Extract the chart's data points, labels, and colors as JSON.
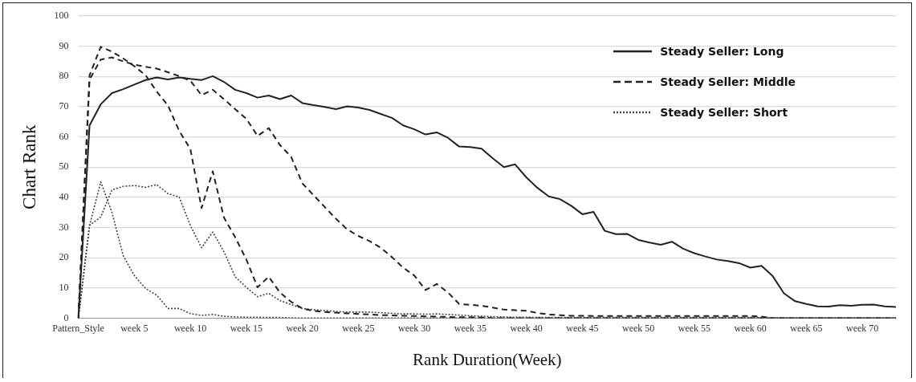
{
  "chart_data": {
    "type": "line",
    "xlabel": "Rank Duration(Week)",
    "ylabel": "Chart Rank",
    "categories": [
      "Pattern_Style",
      null,
      null,
      null,
      null,
      "week 5",
      null,
      null,
      null,
      null,
      "week 10",
      null,
      null,
      null,
      null,
      "week 15",
      null,
      null,
      null,
      null,
      "week 20",
      null,
      null,
      null,
      null,
      "week 25",
      null,
      null,
      null,
      null,
      "week 30",
      null,
      null,
      null,
      null,
      "week 35",
      null,
      null,
      null,
      null,
      "week 40",
      null,
      null,
      null,
      null,
      "week 45",
      null,
      null,
      null,
      null,
      "week 50",
      null,
      null,
      null,
      null,
      "week 55",
      null,
      null,
      null,
      null,
      "week 60",
      null,
      null,
      null,
      null,
      "week 65",
      null,
      null,
      null,
      null,
      "week 70",
      null,
      null,
      null
    ],
    "ylim": [
      0,
      100
    ],
    "yticks": [
      0,
      10,
      20,
      30,
      40,
      50,
      60,
      70,
      80,
      90,
      100
    ],
    "grid": "y",
    "legend": "top right",
    "marker": "none",
    "series": [
      {
        "name": "Steady Seller: Long",
        "color": "#222222",
        "line_style": "solid",
        "values": [
          0,
          63.8,
          70.8,
          74.5,
          75.8,
          77.3,
          78.8,
          79.7,
          79,
          79.7,
          79.2,
          78.8,
          80.1,
          78.2,
          75.6,
          74.5,
          73,
          73.7,
          72.5,
          73.7,
          71.2,
          70.5,
          69.9,
          69.2,
          70.1,
          69.7,
          68.9,
          67.6,
          66.3,
          63.8,
          62.5,
          60.8,
          61.5,
          59.7,
          56.8,
          56.6,
          56.1,
          52.9,
          50,
          50.9,
          46.6,
          43.1,
          40.3,
          39.4,
          37.2,
          34.4,
          35.2,
          28.9,
          27.8,
          27.9,
          25.9,
          25,
          24.3,
          25.3,
          23,
          21.5,
          20.4,
          19.4,
          18.9,
          18.2,
          16.7,
          17.3,
          13.9,
          8.2,
          5.6,
          4.7,
          3.9,
          3.8,
          4.3,
          4.1,
          4.4,
          4.5,
          3.9,
          3.7
        ]
      },
      {
        "name": "Steady Seller: Middle",
        "color": "#222222",
        "line_style": "dashed",
        "values": [
          0,
          79,
          85.6,
          86.3,
          85,
          83.9,
          83.2,
          82.6,
          81.4,
          80.1,
          78.6,
          73.8,
          75.6,
          72.5,
          69.2,
          66,
          60.3,
          62.9,
          57.3,
          53.4,
          44.6,
          40.7,
          36.8,
          32.9,
          29.4,
          27.2,
          25.5,
          23.3,
          20.2,
          16.7,
          14.1,
          9.3,
          11.3,
          8.5,
          4.7,
          4.4,
          4.1,
          3.5,
          2.8,
          2.6,
          2.4,
          1.7,
          1.2,
          1,
          0.8,
          0.8,
          0.7,
          0.7,
          0.7,
          0.7,
          0.7,
          0.7,
          0.7,
          0.7,
          0.7,
          0.7,
          0.7,
          0.7,
          0.7,
          0.7,
          0.7,
          0.5,
          0,
          0,
          0,
          0,
          0,
          0,
          0,
          0,
          0,
          0,
          0,
          0
        ]
      },
      {
        "color": "#222222",
        "line_style": "dashed",
        "values": [
          0,
          80.4,
          89.8,
          88.2,
          86,
          83.4,
          80.4,
          75,
          70.4,
          62,
          56,
          36.4,
          48.6,
          33.3,
          26.8,
          19.4,
          10.2,
          13.7,
          8.5,
          5.4,
          3.2,
          2.4,
          2,
          1.8,
          1.6,
          1.4,
          1.2,
          1,
          0.9,
          0.8,
          0.7,
          0.6,
          0.5,
          0.4,
          0.3,
          0.3,
          0.2,
          0,
          0,
          0,
          0,
          0,
          0,
          0,
          0,
          0,
          0,
          0,
          0,
          0,
          0,
          0,
          0,
          0,
          0,
          0,
          0,
          0,
          0,
          0,
          0,
          0,
          0,
          0,
          0,
          0,
          0,
          0,
          0,
          0,
          0,
          0,
          0,
          0
        ]
      },
      {
        "name": "Steady Seller: Short",
        "color": "#444444",
        "line_style": "dotted",
        "values": [
          0,
          30.7,
          33.5,
          42.5,
          43.6,
          43.9,
          43.3,
          44.2,
          41.2,
          40.1,
          30.7,
          23.3,
          28.5,
          22,
          13.7,
          10.2,
          7.1,
          8.2,
          5.8,
          4.5,
          3.2,
          2.8,
          2.5,
          2.2,
          2,
          2,
          2,
          1.8,
          1.6,
          1.4,
          1.4,
          1.3,
          1.4,
          1.2,
          1,
          0.8,
          0.6,
          0.5,
          0.4,
          0.3,
          0.3,
          0.2,
          0.2,
          0.2,
          0.2,
          0.2,
          0.2,
          0.2,
          0.2,
          0.2,
          0.2,
          0.2,
          0.2,
          0.2,
          0.2,
          0.2,
          0.2,
          0.2,
          0.2,
          0.2,
          0.2,
          0.2,
          0,
          0,
          0,
          0,
          0,
          0,
          0,
          0,
          0,
          0,
          0,
          0
        ]
      },
      {
        "color": "#444444",
        "line_style": "dotted",
        "values": [
          0,
          30.7,
          45.1,
          35,
          20.7,
          14.1,
          9.8,
          7.6,
          3.2,
          3.2,
          1.5,
          0.9,
          1.2,
          0.6,
          0.4,
          0.3,
          0.3,
          0.2,
          0.2,
          0.1,
          0,
          0,
          0,
          0,
          0,
          0,
          0,
          0,
          0,
          0,
          0,
          0,
          0,
          0,
          0,
          0,
          0,
          0,
          0,
          0,
          0,
          0,
          0,
          0,
          0,
          0,
          0,
          0,
          0,
          0,
          0,
          0,
          0,
          0,
          0,
          0,
          0,
          0,
          0,
          0,
          0,
          0,
          0,
          0,
          0,
          0,
          0,
          0,
          0,
          0,
          0,
          0,
          0,
          0
        ]
      }
    ]
  }
}
